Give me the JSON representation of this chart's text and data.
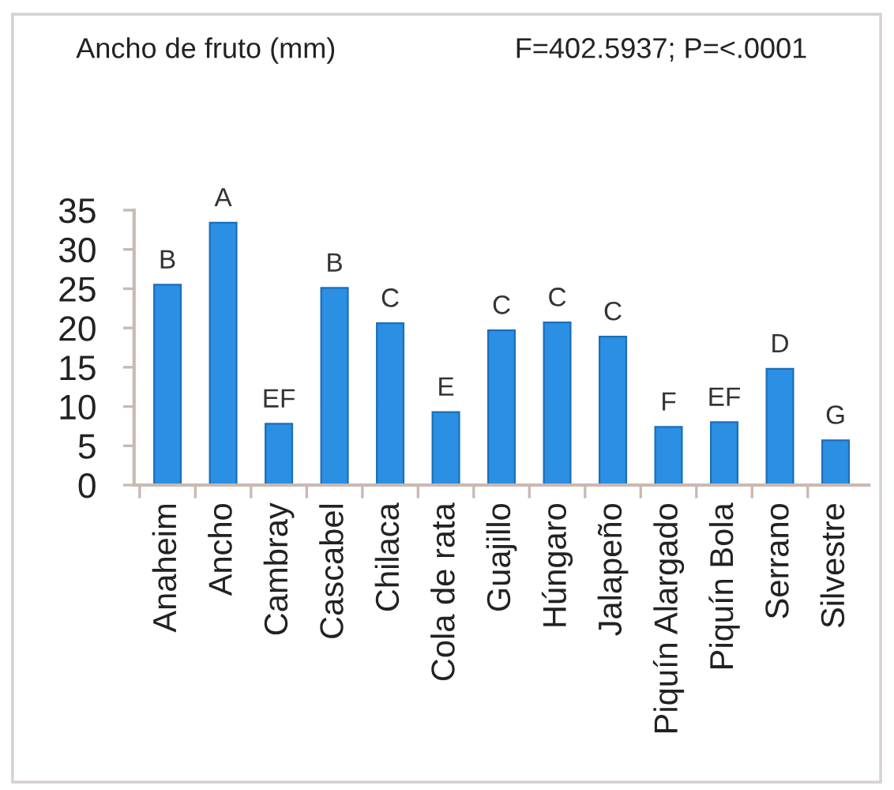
{
  "chart_data": {
    "type": "bar",
    "title": "Ancho de fruto (mm)",
    "subtitle": "F=402.5937; P=<.0001",
    "categories": [
      "Anaheim",
      "Ancho",
      "Cambray",
      "Cascabel",
      "Chilaca",
      "Cola de rata",
      "Guajillo",
      "Húngaro",
      "Jalapeño",
      "Piquín Alargado",
      "Piquín Bola",
      "Serrano",
      "Silvestre"
    ],
    "values": [
      25.5,
      33.4,
      7.8,
      25.1,
      20.6,
      9.3,
      19.7,
      20.7,
      18.9,
      7.4,
      8.0,
      14.8,
      5.7
    ],
    "color": "#2b8fe3",
    "ylim": [
      0,
      35
    ],
    "yticks": [
      0,
      5,
      10,
      15,
      20,
      25,
      30,
      35
    ],
    "grid": false,
    "legend": false,
    "annotations": [
      {
        "text": "B",
        "x": "Anaheim",
        "y": 25.5
      },
      {
        "text": "A",
        "x": "Ancho",
        "y": 33.4
      },
      {
        "text": "EF",
        "x": "Cambray",
        "y": 7.8
      },
      {
        "text": "B",
        "x": "Cascabel",
        "y": 25.1
      },
      {
        "text": "C",
        "x": "Chilaca",
        "y": 20.6
      },
      {
        "text": "E",
        "x": "Cola de rata",
        "y": 9.3
      },
      {
        "text": "C",
        "x": "Guajillo",
        "y": 19.7
      },
      {
        "text": "C",
        "x": "Húngaro",
        "y": 20.7
      },
      {
        "text": "C",
        "x": "Jalapeño",
        "y": 18.9
      },
      {
        "text": "F",
        "x": "Piquín Alargado",
        "y": 7.4
      },
      {
        "text": "EF",
        "x": "Piquín Bola",
        "y": 8.0
      },
      {
        "text": "D",
        "x": "Serrano",
        "y": 14.8
      },
      {
        "text": "G",
        "x": "Silvestre",
        "y": 5.7
      }
    ]
  }
}
